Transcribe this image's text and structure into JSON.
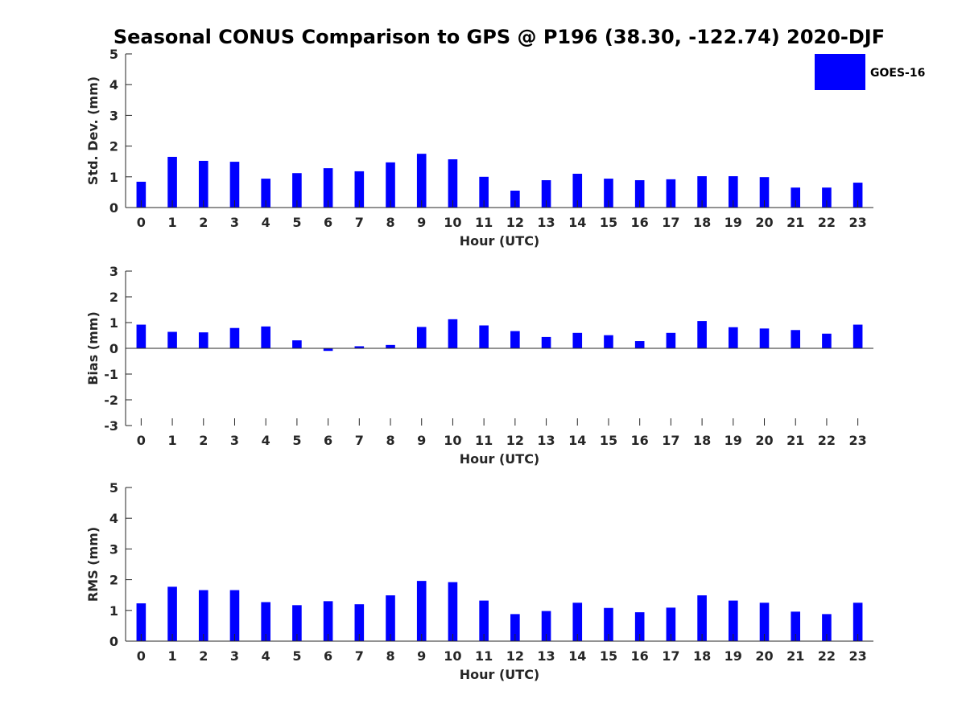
{
  "figure": {
    "title": "Seasonal CONUS Comparison to GPS @ P196 (38.30, -122.74) 2020-DJF",
    "legend": {
      "label": "GOES-16",
      "color": "#0000ff",
      "placement": "top-right"
    },
    "bar_color": "#0000ff"
  },
  "chart_data": [
    {
      "type": "bar",
      "series_name": "GOES-16",
      "xlabel": "Hour (UTC)",
      "ylabel": "Std. Dev. (mm)",
      "ylim": [
        0,
        5
      ],
      "yticks": [
        0,
        1,
        2,
        3,
        4,
        5
      ],
      "categories": [
        "0",
        "1",
        "2",
        "3",
        "4",
        "5",
        "6",
        "7",
        "8",
        "9",
        "10",
        "11",
        "12",
        "13",
        "14",
        "15",
        "16",
        "17",
        "18",
        "19",
        "20",
        "21",
        "22",
        "23"
      ],
      "values": [
        0.84,
        1.65,
        1.52,
        1.49,
        0.94,
        1.12,
        1.28,
        1.18,
        1.47,
        1.75,
        1.57,
        1.0,
        0.55,
        0.89,
        1.1,
        0.94,
        0.89,
        0.92,
        1.02,
        1.02,
        0.99,
        0.65,
        0.65,
        0.81
      ],
      "grid": false
    },
    {
      "type": "bar",
      "series_name": "GOES-16",
      "xlabel": "Hour (UTC)",
      "ylabel": "Bias (mm)",
      "ylim": [
        -3,
        3
      ],
      "yticks": [
        -3,
        -2,
        -1,
        0,
        1,
        2,
        3
      ],
      "categories": [
        "0",
        "1",
        "2",
        "3",
        "4",
        "5",
        "6",
        "7",
        "8",
        "9",
        "10",
        "11",
        "12",
        "13",
        "14",
        "15",
        "16",
        "17",
        "18",
        "19",
        "20",
        "21",
        "22",
        "23"
      ],
      "values": [
        0.92,
        0.64,
        0.62,
        0.79,
        0.85,
        0.31,
        -0.1,
        0.08,
        0.13,
        0.83,
        1.13,
        0.89,
        0.67,
        0.44,
        0.6,
        0.51,
        0.28,
        0.6,
        1.06,
        0.82,
        0.77,
        0.71,
        0.57,
        0.92
      ],
      "grid": false
    },
    {
      "type": "bar",
      "series_name": "GOES-16",
      "xlabel": "Hour (UTC)",
      "ylabel": "RMS (mm)",
      "ylim": [
        0,
        5
      ],
      "yticks": [
        0,
        1,
        2,
        3,
        4,
        5
      ],
      "categories": [
        "0",
        "1",
        "2",
        "3",
        "4",
        "5",
        "6",
        "7",
        "8",
        "9",
        "10",
        "11",
        "12",
        "13",
        "14",
        "15",
        "16",
        "17",
        "18",
        "19",
        "20",
        "21",
        "22",
        "23"
      ],
      "values": [
        1.23,
        1.77,
        1.66,
        1.66,
        1.27,
        1.17,
        1.3,
        1.2,
        1.49,
        1.96,
        1.92,
        1.32,
        0.88,
        0.98,
        1.25,
        1.08,
        0.94,
        1.09,
        1.49,
        1.32,
        1.25,
        0.96,
        0.88,
        1.25
      ],
      "grid": false
    }
  ]
}
